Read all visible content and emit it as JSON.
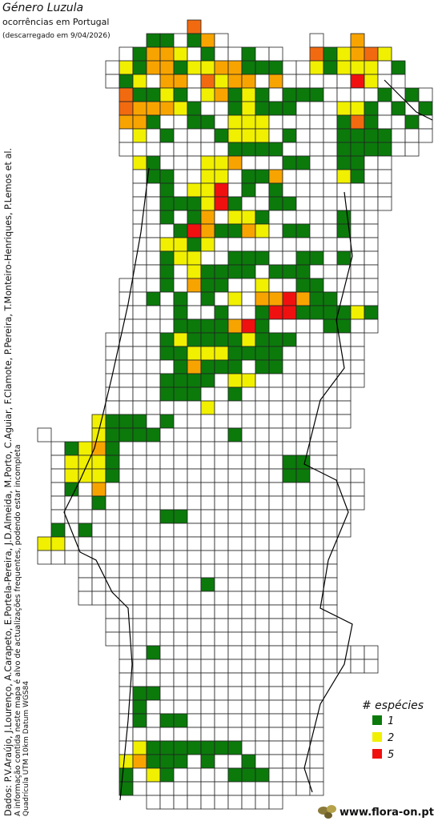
{
  "header": {
    "title": "Género Luzula",
    "subtitle": "ocorrências em Portugal",
    "download_note": "(descarregado em 9/04/2026)"
  },
  "credits": [
    "Dados: P.V.Araújo, J.Lourenço, A.Carapeto, E.Portela-Pereira, J.D.Almeida, M.Porto, C.Aguiar, F.Clamote, P.Pereira, T.Monteiro-Henriques, P.Lemos et al.",
    "A informação contida neste mapa é alvo de actualizações frequentes, podendo estar incompleta",
    "Quadrícula UTM 10km Datum WGS84"
  ],
  "legend": {
    "title": "# espécies",
    "items": [
      {
        "value": 1,
        "color": "#0b7a0b"
      },
      {
        "value": 2,
        "color": "#f0f000"
      },
      {
        "value": 5,
        "color": "#f01010"
      }
    ]
  },
  "footer": {
    "site": "www.flora-on.pt"
  }
}
